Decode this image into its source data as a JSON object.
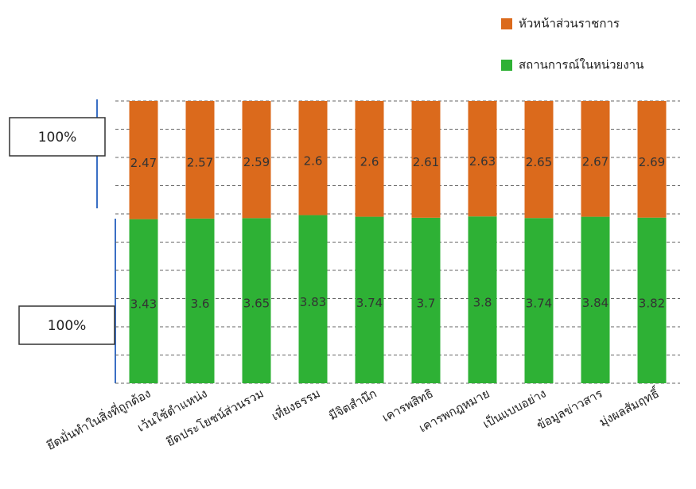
{
  "chart_data": {
    "type": "bar",
    "stacking": "percent",
    "categories": [
      "ยึดมั่นทำในสิ่งที่ถูกต้อง",
      "เว้นใช้ตำแหน่ง",
      "ยึดประโยชน์ส่วนรวม",
      "เที่ยงธรรม",
      "มีจิตสำนึก",
      "เคารพสิทธิ",
      "เคารพกฎหมาย",
      "เป็นแบบอย่าง",
      "ข้อมูลข่าวสาร",
      "มุ่งผลสัมฤทธิ์"
    ],
    "series": [
      {
        "name": "สถานการณ์ในหน่วยงาน",
        "color": "#2eb135",
        "values": [
          3.43,
          3.6,
          3.65,
          3.83,
          3.74,
          3.7,
          3.8,
          3.74,
          3.84,
          3.82
        ]
      },
      {
        "name": "หัวหน้าส่วนราชการ",
        "color": "#db6a1c",
        "values": [
          2.47,
          2.57,
          2.59,
          2.6,
          2.6,
          2.61,
          2.63,
          2.65,
          2.67,
          2.69
        ]
      }
    ],
    "ylim": [
      0,
      100
    ],
    "yticks": [
      0,
      10,
      20,
      30,
      40,
      50,
      60,
      70,
      80,
      90,
      100
    ],
    "grid": true,
    "legend": "top-right",
    "annotations": [
      "100%",
      "100%"
    ]
  }
}
